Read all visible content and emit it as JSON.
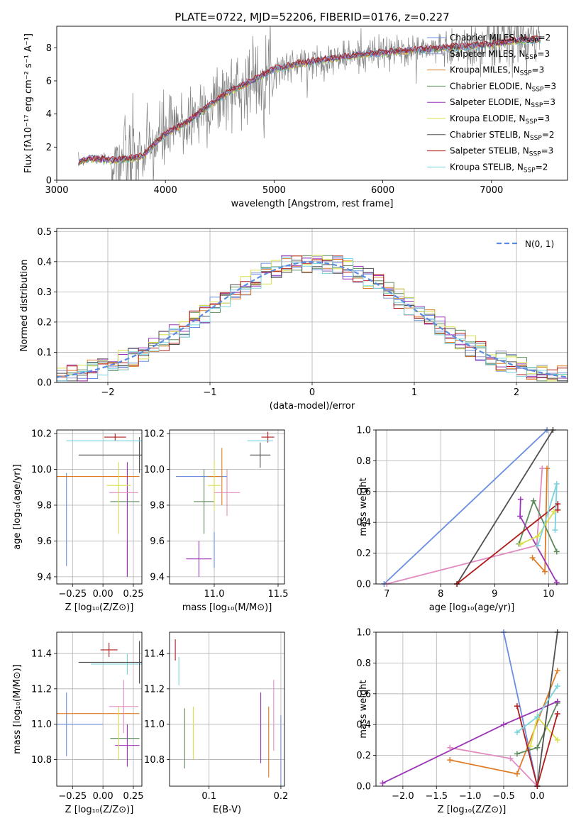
{
  "title": "PLATE=0722, MJD=52206, FIBERID=0176, z=0.227",
  "colors": {
    "chabrier_miles": "#6a8ee0",
    "salpeter_miles": "#9a9acc",
    "kroupa_miles": "#e07b24",
    "chabrier_elodie": "#5b8a5b",
    "salpeter_elodie": "#9b35b5",
    "kroupa_elodie": "#d8e04a",
    "chabrier_stelib": "#505050",
    "salpeter_stelib": "#b01c1c",
    "kroupa_stelib": "#79d3de",
    "data": "#808080",
    "pink": "#e08cc0",
    "gauss": "#5a8be0"
  },
  "chart_data": [
    {
      "id": "spectrum",
      "type": "line",
      "xlabel": "wavelength [Angstrom, rest frame]",
      "ylabel": "Flux [fλ10⁻¹⁷ erg cm⁻² s⁻¹ A⁻¹]",
      "xlim": [
        3000,
        7700
      ],
      "ylim": [
        0,
        9.3
      ],
      "xticks": [
        3000,
        4000,
        5000,
        6000,
        7000
      ],
      "yticks": [
        0,
        2,
        4,
        6,
        8
      ],
      "grid": false,
      "legend_position": "top-right",
      "legend": [
        {
          "label": "Chabrier MILES, N",
          "sub": "SSP",
          "suffix": "=2",
          "color": "chabrier_miles"
        },
        {
          "label": "Salpeter MILES, N",
          "sub": "SSP",
          "suffix": "=3",
          "color": "salpeter_miles"
        },
        {
          "label": "Kroupa MILES, N",
          "sub": "SSP",
          "suffix": "=3",
          "color": "kroupa_miles"
        },
        {
          "label": "Chabrier ELODIE, N",
          "sub": "SSP",
          "suffix": "=3",
          "color": "chabrier_elodie"
        },
        {
          "label": "Salpeter ELODIE, N",
          "sub": "SSP",
          "suffix": "=3",
          "color": "salpeter_elodie"
        },
        {
          "label": "Kroupa ELODIE, N",
          "sub": "SSP",
          "suffix": "=3",
          "color": "kroupa_elodie"
        },
        {
          "label": "Chabrier STELIB, N",
          "sub": "SSP",
          "suffix": "=2",
          "color": "chabrier_stelib"
        },
        {
          "label": "Salpeter STELIB, N",
          "sub": "SSP",
          "suffix": "=3",
          "color": "salpeter_stelib"
        },
        {
          "label": "Kroupa STELIB, N",
          "sub": "SSP",
          "suffix": "=2",
          "color": "kroupa_stelib"
        }
      ],
      "continuum": [
        [
          3200,
          1.1
        ],
        [
          3300,
          1.3
        ],
        [
          3500,
          1.2
        ],
        [
          3700,
          1.3
        ],
        [
          3800,
          1.5
        ],
        [
          3900,
          2.2
        ],
        [
          4000,
          2.8
        ],
        [
          4200,
          3.5
        ],
        [
          4400,
          4.5
        ],
        [
          4600,
          5.4
        ],
        [
          4800,
          6.0
        ],
        [
          5000,
          6.7
        ],
        [
          5200,
          7.0
        ],
        [
          5400,
          7.2
        ],
        [
          5600,
          7.4
        ],
        [
          5800,
          7.6
        ],
        [
          6000,
          7.7
        ],
        [
          6200,
          7.8
        ],
        [
          6400,
          7.9
        ],
        [
          6600,
          8.0
        ],
        [
          6800,
          8.1
        ],
        [
          7000,
          8.2
        ],
        [
          7200,
          8.4
        ],
        [
          7400,
          8.5
        ]
      ]
    },
    {
      "id": "residuals",
      "type": "histogram",
      "xlabel": "(data-model)/error",
      "ylabel": "Normed distribution",
      "xlim": [
        -2.5,
        2.5
      ],
      "ylim": [
        0,
        0.51
      ],
      "xticks": [
        -2,
        -1,
        0,
        1,
        2
      ],
      "yticks": [
        0.0,
        0.1,
        0.2,
        0.3,
        0.4,
        0.5
      ],
      "grid": true,
      "legend_position": "top-right",
      "gauss_label": "N(0, 1)",
      "bins": 50
    },
    {
      "id": "age_vs_Z",
      "type": "errorbar",
      "xlabel": "Z [log₁₀(Z/Z⊙)]",
      "ylabel": "age  [log₁₀(age/yr)]",
      "xlim": [
        -0.38,
        0.32
      ],
      "ylim": [
        9.36,
        10.22
      ],
      "xticks": [
        -0.25,
        0.0,
        0.25
      ],
      "yticks": [
        9.4,
        9.6,
        9.8,
        10.0,
        10.2
      ],
      "grid": true,
      "points": [
        {
          "color": "chabrier_miles",
          "x": -0.3,
          "y": 9.72,
          "xerr": 0.0,
          "yerr": 0.26
        },
        {
          "color": "kroupa_miles",
          "x": -0.3,
          "y": 9.96,
          "xerr": 0.6,
          "yerr": 0.0
        },
        {
          "color": "chabrier_elodie",
          "x": 0.18,
          "y": 9.82,
          "xerr": 0.12,
          "yerr": 0.0
        },
        {
          "color": "salpeter_elodie",
          "x": 0.2,
          "y": 9.5,
          "xerr": 0.0,
          "yerr": 0.1
        },
        {
          "color": "salpeter_elodie",
          "x": 0.2,
          "y": 9.72,
          "xerr": 0.0,
          "yerr": 0.32
        },
        {
          "color": "kroupa_elodie",
          "x": 0.13,
          "y": 9.84,
          "xerr": 0.0,
          "yerr": 0.2
        },
        {
          "color": "kroupa_elodie",
          "x": 0.13,
          "y": 9.91,
          "xerr": 0.1,
          "yerr": 0.0
        },
        {
          "color": "chabrier_stelib",
          "x": 0.3,
          "y": 10.08,
          "xerr": 0.5,
          "yerr": 0.1
        },
        {
          "color": "salpeter_stelib",
          "x": 0.1,
          "y": 10.18,
          "xerr": 0.09,
          "yerr": 0.02
        },
        {
          "color": "kroupa_stelib",
          "x": 0.2,
          "y": 10.16,
          "xerr": 0.5,
          "yerr": 0.0
        },
        {
          "color": "pink",
          "x": 0.17,
          "y": 9.87,
          "xerr": 0.12,
          "yerr": 0.0
        }
      ]
    },
    {
      "id": "age_vs_mass",
      "type": "errorbar",
      "xlabel": "mass [log₁₀(M/M⊙)]",
      "ylabel": "",
      "xlim": [
        10.65,
        11.55
      ],
      "ylim": [
        9.36,
        10.22
      ],
      "xticks": [
        11.0,
        11.5
      ],
      "yticks": [
        9.4,
        9.6,
        9.8,
        10.0,
        10.2
      ],
      "grid": true,
      "points": [
        {
          "color": "chabrier_miles",
          "x": 11.0,
          "y": 9.55,
          "xerr": 0.0,
          "yerr": 0.1
        },
        {
          "color": "chabrier_miles",
          "x": 10.9,
          "y": 9.96,
          "xerr": 0.2,
          "yerr": 0.0
        },
        {
          "color": "kroupa_miles",
          "x": 11.0,
          "y": 9.96,
          "xerr": 0.05,
          "yerr": 0.0
        },
        {
          "color": "salpeter_elodie",
          "x": 10.88,
          "y": 9.5,
          "xerr": 0.1,
          "yerr": 0.1
        },
        {
          "color": "chabrier_elodie",
          "x": 10.92,
          "y": 9.82,
          "xerr": 0.08,
          "yerr": 0.18
        },
        {
          "color": "kroupa_elodie",
          "x": 11.0,
          "y": 9.91,
          "xerr": 0.05,
          "yerr": 0.14
        },
        {
          "color": "kroupa_miles",
          "x": 11.06,
          "y": 9.96,
          "xerr": 0.0,
          "yerr": 0.16
        },
        {
          "color": "pink",
          "x": 11.1,
          "y": 9.87,
          "xerr": 0.1,
          "yerr": 0.13
        },
        {
          "color": "chabrier_stelib",
          "x": 11.36,
          "y": 10.08,
          "xerr": 0.08,
          "yerr": 0.07
        },
        {
          "color": "salpeter_stelib",
          "x": 11.42,
          "y": 10.18,
          "xerr": 0.05,
          "yerr": 0.03
        },
        {
          "color": "kroupa_stelib",
          "x": 11.36,
          "y": 10.16,
          "xerr": 0.1,
          "yerr": 0.0
        }
      ]
    },
    {
      "id": "mass_weight_vs_age",
      "type": "line",
      "xlabel": "age  [log₁₀(age/yr)]",
      "ylabel": "mass weight",
      "xlim": [
        6.8,
        10.35
      ],
      "ylim": [
        0,
        1.0
      ],
      "xticks": [
        7,
        8,
        9,
        10
      ],
      "yticks": [
        0.0,
        0.2,
        0.4,
        0.6,
        0.8,
        1.0
      ],
      "grid": true,
      "series": [
        {
          "color": "chabrier_miles",
          "points": [
            [
              6.95,
              0.0
            ],
            [
              9.97,
              1.0
            ]
          ]
        },
        {
          "color": "kroupa_miles",
          "points": [
            [
              9.7,
              0.17
            ],
            [
              9.93,
              0.08
            ],
            [
              9.97,
              0.75
            ]
          ]
        },
        {
          "color": "pink",
          "points": [
            [
              7.0,
              0.0
            ],
            [
              9.78,
              0.25
            ],
            [
              9.88,
              0.75
            ]
          ]
        },
        {
          "color": "chabrier_elodie",
          "points": [
            [
              9.45,
              0.26
            ],
            [
              9.72,
              0.54
            ],
            [
              10.15,
              0.21
            ]
          ]
        },
        {
          "color": "salpeter_elodie",
          "points": [
            [
              9.48,
              0.55
            ],
            [
              9.47,
              0.44
            ],
            [
              10.15,
              0.01
            ]
          ]
        },
        {
          "color": "kroupa_elodie",
          "points": [
            [
              9.48,
              0.26
            ],
            [
              9.8,
              0.31
            ],
            [
              10.1,
              0.47
            ]
          ]
        },
        {
          "color": "chabrier_stelib",
          "points": [
            [
              8.3,
              0.0
            ],
            [
              10.08,
              1.0
            ]
          ]
        },
        {
          "color": "salpeter_stelib",
          "points": [
            [
              8.3,
              0.0
            ],
            [
              10.17,
              0.52
            ],
            [
              10.17,
              0.48
            ]
          ]
        },
        {
          "color": "kroupa_stelib",
          "points": [
            [
              9.8,
              0.25
            ],
            [
              10.15,
              0.65
            ],
            [
              10.12,
              0.35
            ]
          ]
        }
      ]
    },
    {
      "id": "mass_vs_Z",
      "type": "errorbar",
      "xlabel": "Z [log₁₀(Z/Z⊙)]",
      "ylabel": "mass [log₁₀(M/M⊙)]",
      "xlim": [
        -0.38,
        0.32
      ],
      "ylim": [
        10.65,
        11.52
      ],
      "xticks": [
        -0.25,
        0.0,
        0.25
      ],
      "yticks": [
        10.8,
        11.0,
        11.2,
        11.4
      ],
      "grid": true,
      "points": [
        {
          "color": "chabrier_miles",
          "x": -0.3,
          "y": 11.0,
          "xerr": 0.3,
          "yerr": 0.18
        },
        {
          "color": "kroupa_miles",
          "x": -0.3,
          "y": 11.06,
          "xerr": 0.6,
          "yerr": 0.0
        },
        {
          "color": "chabrier_elodie",
          "x": 0.18,
          "y": 10.92,
          "xerr": 0.12,
          "yerr": 0.0
        },
        {
          "color": "salpeter_elodie",
          "x": 0.2,
          "y": 10.88,
          "xerr": 0.1,
          "yerr": 0.12
        },
        {
          "color": "kroupa_elodie",
          "x": 0.13,
          "y": 10.95,
          "xerr": 0.0,
          "yerr": 0.15
        },
        {
          "color": "pink",
          "x": 0.17,
          "y": 11.1,
          "xerr": 0.12,
          "yerr": 0.15
        },
        {
          "color": "kroupa_stelib",
          "x": 0.2,
          "y": 11.34,
          "xerr": 0.3,
          "yerr": 0.06
        },
        {
          "color": "chabrier_stelib",
          "x": 0.3,
          "y": 11.35,
          "xerr": 0.5,
          "yerr": 0.12
        },
        {
          "color": "salpeter_stelib",
          "x": 0.05,
          "y": 11.42,
          "xerr": 0.07,
          "yerr": 0.04
        }
      ]
    },
    {
      "id": "mass_vs_ebv",
      "type": "errorbar",
      "xlabel": "E(B-V)",
      "ylabel": "",
      "xlim": [
        0.045,
        0.205
      ],
      "ylim": [
        10.65,
        11.52
      ],
      "xticks": [
        0.1,
        0.2
      ],
      "yticks": [
        10.8,
        11.0,
        11.2,
        11.4
      ],
      "grid": true,
      "points": [
        {
          "color": "salpeter_stelib",
          "x": 0.053,
          "y": 11.42,
          "xerr": 0.0,
          "yerr": 0.06
        },
        {
          "color": "kroupa_stelib",
          "x": 0.058,
          "y": 11.3,
          "xerr": 0.0,
          "yerr": 0.08
        },
        {
          "color": "chabrier_elodie",
          "x": 0.066,
          "y": 10.92,
          "xerr": 0.0,
          "yerr": 0.17
        },
        {
          "color": "kroupa_elodie",
          "x": 0.078,
          "y": 10.95,
          "xerr": 0.0,
          "yerr": 0.15
        },
        {
          "color": "salpeter_elodie",
          "x": 0.172,
          "y": 10.98,
          "xerr": 0.0,
          "yerr": 0.2
        },
        {
          "color": "kroupa_miles",
          "x": 0.183,
          "y": 10.9,
          "xerr": 0.0,
          "yerr": 0.2
        },
        {
          "color": "pink",
          "x": 0.19,
          "y": 11.05,
          "xerr": 0.0,
          "yerr": 0.2
        },
        {
          "color": "chabrier_miles",
          "x": 0.2,
          "y": 10.85,
          "xerr": 0.0,
          "yerr": 0.2
        }
      ]
    },
    {
      "id": "mass_weight_vs_Z",
      "type": "line",
      "xlabel": "Z [log₁₀(Z/Z⊙)]",
      "ylabel": "mass weight",
      "xlim": [
        -2.4,
        0.45
      ],
      "ylim": [
        0,
        1.0
      ],
      "xticks": [
        -2.0,
        -1.5,
        -1.0,
        -0.5,
        0.0
      ],
      "yticks": [
        0.0,
        0.2,
        0.4,
        0.6,
        0.8,
        1.0
      ],
      "grid": true,
      "series": [
        {
          "color": "chabrier_miles",
          "points": [
            [
              -0.5,
              1.0
            ],
            [
              0.0,
              0.0
            ]
          ]
        },
        {
          "color": "kroupa_miles",
          "points": [
            [
              -1.3,
              0.17
            ],
            [
              -0.3,
              0.08
            ],
            [
              0.3,
              0.75
            ]
          ]
        },
        {
          "color": "pink",
          "points": [
            [
              -1.3,
              0.25
            ],
            [
              -0.4,
              0.18
            ],
            [
              0.0,
              0.0
            ]
          ]
        },
        {
          "color": "chabrier_elodie",
          "points": [
            [
              -0.3,
              0.21
            ],
            [
              0.0,
              0.25
            ],
            [
              0.3,
              0.54
            ]
          ]
        },
        {
          "color": "salpeter_elodie",
          "points": [
            [
              -2.3,
              0.02
            ],
            [
              -0.5,
              0.4
            ],
            [
              0.3,
              0.55
            ]
          ]
        },
        {
          "color": "kroupa_elodie",
          "points": [
            [
              -0.1,
              0.26
            ],
            [
              0.0,
              0.45
            ],
            [
              0.3,
              0.3
            ]
          ]
        },
        {
          "color": "chabrier_stelib",
          "points": [
            [
              0.0,
              0.0
            ],
            [
              0.3,
              1.0
            ]
          ]
        },
        {
          "color": "salpeter_stelib",
          "points": [
            [
              -0.3,
              0.52
            ],
            [
              0.0,
              0.0
            ],
            [
              0.3,
              0.47
            ]
          ]
        },
        {
          "color": "kroupa_stelib",
          "points": [
            [
              -0.3,
              0.35
            ],
            [
              0.0,
              0.45
            ],
            [
              0.3,
              0.65
            ]
          ]
        }
      ]
    }
  ]
}
